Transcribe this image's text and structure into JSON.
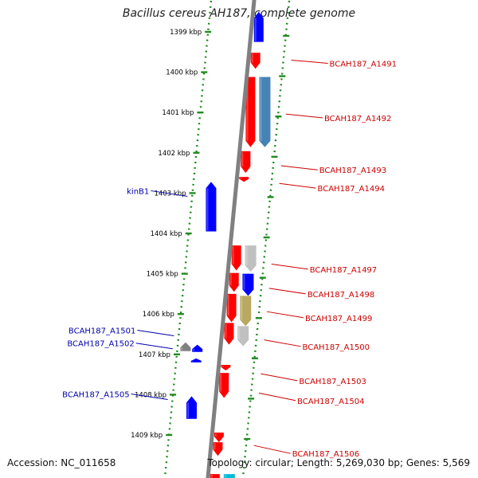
{
  "title": "Bacillus cereus AH187, complete genome",
  "accession": "Accession: NC_011658",
  "topology": "Topology: circular; Length: 5,269,030 bp; Genes: 5,569",
  "colors": {
    "forward_gene": "#ff0000",
    "reverse_gene": "#0000ff",
    "backbone": "#808080",
    "tick_dots": "#228b22",
    "right_label": "#cc0000",
    "left_label": "#0000aa"
  },
  "scale": {
    "unit": "kbp",
    "ticks": [
      {
        "kbp": 1399,
        "label": "1399 kbp"
      },
      {
        "kbp": 1400,
        "label": "1400 kbp"
      },
      {
        "kbp": 1401,
        "label": "1401 kbp"
      },
      {
        "kbp": 1402,
        "label": "1402 kbp"
      },
      {
        "kbp": 1403,
        "label": "1403 kbp"
      },
      {
        "kbp": 1404,
        "label": "1404 kbp"
      },
      {
        "kbp": 1405,
        "label": "1405 kbp"
      },
      {
        "kbp": 1406,
        "label": "1406 kbp"
      },
      {
        "kbp": 1407,
        "label": "1407 kbp"
      },
      {
        "kbp": 1408,
        "label": "1408 kbp"
      },
      {
        "kbp": 1409,
        "label": "1409 kbp"
      }
    ]
  },
  "labels": {
    "right": [
      {
        "text": "BCAH187_A1491",
        "kbp": 1399.74
      },
      {
        "text": "BCAH187_A1492",
        "kbp": 1401.08
      },
      {
        "text": "BCAH187_A1493",
        "kbp": 1402.36
      },
      {
        "text": "BCAH187_A1494",
        "kbp": 1402.8
      },
      {
        "text": "BCAH187_A1497",
        "kbp": 1404.8
      },
      {
        "text": "BCAH187_A1498",
        "kbp": 1405.4
      },
      {
        "text": "BCAH187_A1499",
        "kbp": 1405.98
      },
      {
        "text": "BCAH187_A1500",
        "kbp": 1406.68
      },
      {
        "text": "BCAH187_A1503",
        "kbp": 1407.52
      },
      {
        "text": "BCAH187_A1504",
        "kbp": 1408.0
      },
      {
        "text": "BCAH187_A1506",
        "kbp": 1409.3
      }
    ],
    "left": [
      {
        "text": "kinB1",
        "kbp": 1403.06
      },
      {
        "text": "BCAH187_A1501",
        "kbp": 1406.52
      },
      {
        "text": "BCAH187_A1502",
        "kbp": 1406.84
      },
      {
        "text": "BCAH187_A1505",
        "kbp": 1408.1
      }
    ]
  },
  "genes": [
    {
      "start": 1398.5,
      "end": 1399.25,
      "strand": "reverse",
      "lane": "inner",
      "color": "#0000ff"
    },
    {
      "start": 1399.52,
      "end": 1399.92,
      "strand": "forward",
      "lane": "inner",
      "color": "#ff0000"
    },
    {
      "start": 1400.12,
      "end": 1401.86,
      "strand": "forward",
      "lane": "inner",
      "color": "#ff0000"
    },
    {
      "start": 1400.12,
      "end": 1401.86,
      "strand": "forward",
      "lane": "outer",
      "color": "#4682b4"
    },
    {
      "start": 1401.96,
      "end": 1402.5,
      "strand": "forward",
      "lane": "inner",
      "color": "#ff0000"
    },
    {
      "start": 1402.6,
      "end": 1402.72,
      "strand": "forward",
      "lane": "inner",
      "color": "#ff0000"
    },
    {
      "start": 1402.72,
      "end": 1403.95,
      "strand": "reverse",
      "lane": "middle",
      "color": "#0000ff"
    },
    {
      "start": 1404.3,
      "end": 1404.92,
      "strand": "forward",
      "lane": "inner",
      "color": "#ff0000"
    },
    {
      "start": 1404.3,
      "end": 1404.95,
      "strand": "forward",
      "lane": "outer",
      "color": "#c0c0c0"
    },
    {
      "start": 1404.98,
      "end": 1405.45,
      "strand": "forward",
      "lane": "inner",
      "color": "#ff0000"
    },
    {
      "start": 1405.0,
      "end": 1405.55,
      "strand": "forward",
      "lane": "outer",
      "color": "#0000ff"
    },
    {
      "start": 1405.5,
      "end": 1406.2,
      "strand": "forward",
      "lane": "inner",
      "color": "#ff0000"
    },
    {
      "start": 1405.55,
      "end": 1406.3,
      "strand": "forward",
      "lane": "outer",
      "color": "#b8a860"
    },
    {
      "start": 1406.22,
      "end": 1406.76,
      "strand": "forward",
      "lane": "inner",
      "color": "#ff0000"
    },
    {
      "start": 1406.3,
      "end": 1406.8,
      "strand": "forward",
      "lane": "outer",
      "color": "#c0c0c0"
    },
    {
      "start": 1406.7,
      "end": 1406.92,
      "strand": "reverse",
      "lane": "far",
      "color": "#808080"
    },
    {
      "start": 1406.76,
      "end": 1406.94,
      "strand": "reverse",
      "lane": "middle",
      "color": "#0000ff"
    },
    {
      "start": 1407.1,
      "end": 1407.2,
      "strand": "reverse",
      "lane": "middle",
      "color": "#0000ff"
    },
    {
      "start": 1407.26,
      "end": 1407.4,
      "strand": "forward",
      "lane": "inner",
      "color": "#ff0000"
    },
    {
      "start": 1407.46,
      "end": 1408.08,
      "strand": "forward",
      "lane": "inner",
      "color": "#ff0000"
    },
    {
      "start": 1408.04,
      "end": 1408.6,
      "strand": "reverse",
      "lane": "middle",
      "color": "#0000ff"
    },
    {
      "start": 1408.94,
      "end": 1409.18,
      "strand": "forward",
      "lane": "inner",
      "color": "#ff0000"
    },
    {
      "start": 1409.18,
      "end": 1409.52,
      "strand": "forward",
      "lane": "inner",
      "color": "#ff0000"
    },
    {
      "start": 1409.97,
      "end": 1410.2,
      "strand": "forward",
      "lane": "inner",
      "color": "#ff0000"
    },
    {
      "start": 1409.97,
      "end": 1410.2,
      "strand": "forward",
      "lane": "outer",
      "color": "#00bcd4"
    }
  ]
}
